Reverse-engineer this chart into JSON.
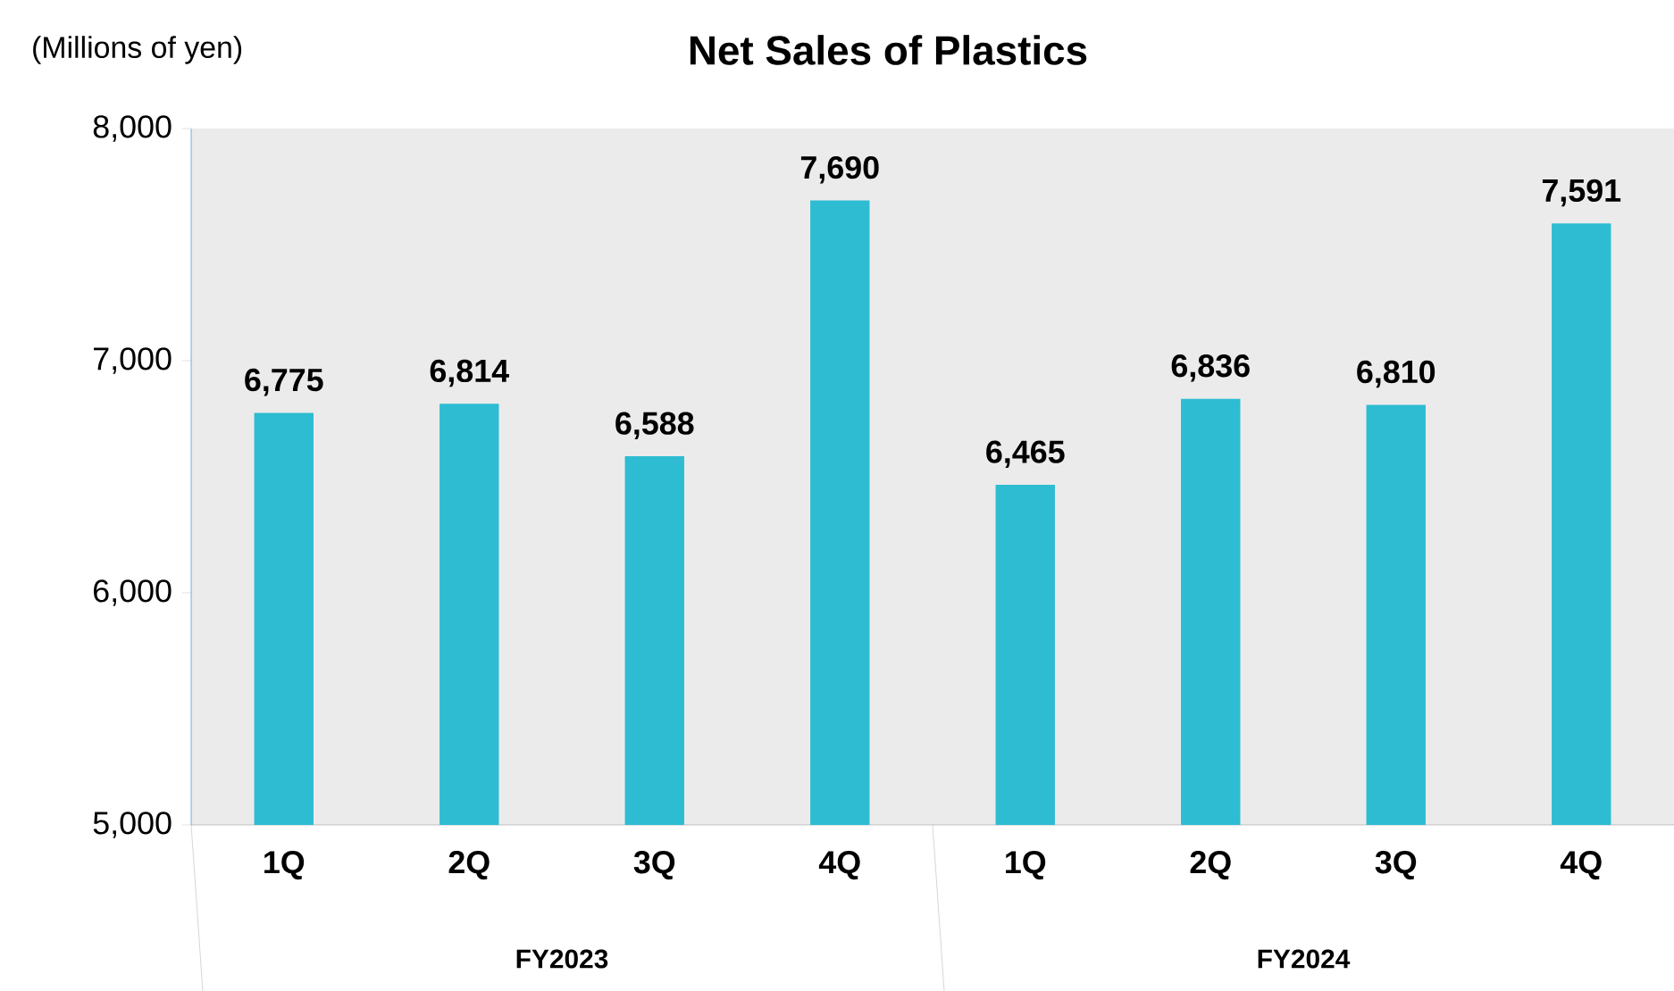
{
  "chart_data": {
    "type": "bar",
    "title": "Net Sales of Plastics",
    "ylabel": "(Millions of yen)",
    "categories": [
      "1Q",
      "2Q",
      "3Q",
      "4Q",
      "1Q",
      "2Q",
      "3Q",
      "4Q"
    ],
    "values": [
      6775,
      6814,
      6588,
      7690,
      6465,
      6836,
      6810,
      7591
    ],
    "value_labels": [
      "6,775",
      "6,814",
      "6,588",
      "7,690",
      "6,465",
      "6,836",
      "6,810",
      "7,591"
    ],
    "color": "#2ebcd2",
    "ylim": [
      5000,
      8000
    ],
    "yticks": [
      {
        "value": 5000,
        "label": "5,000"
      },
      {
        "value": 6000,
        "label": "6,000"
      },
      {
        "value": 7000,
        "label": "7,000"
      },
      {
        "value": 8000,
        "label": "8,000"
      }
    ],
    "annotations": [
      "FY2023",
      "FY2024"
    ]
  }
}
